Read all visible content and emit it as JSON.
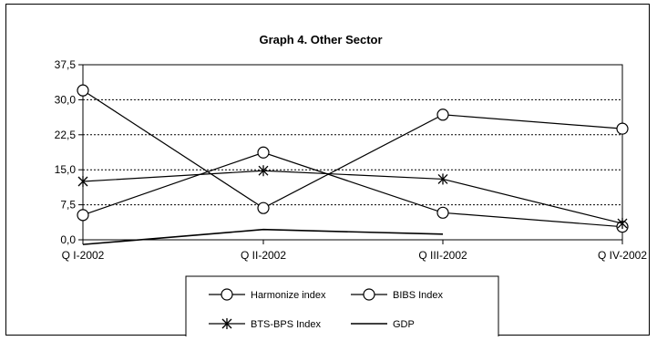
{
  "chart_data": {
    "type": "line",
    "title": "Graph 4. Other Sector",
    "xlabel": "",
    "ylabel": "",
    "categories": [
      "Q I-2002",
      "Q II-2002",
      "Q III-2002",
      "Q IV-2002"
    ],
    "y_ticks": [
      "0,0",
      "7,5",
      "15,0",
      "22,5",
      "30,0",
      "37,5"
    ],
    "y_tick_values": [
      0,
      7.5,
      15,
      22.5,
      30,
      37.5
    ],
    "ylim": [
      0,
      37.5
    ],
    "grid": "horizontal dotted",
    "legend_position": "bottom",
    "series": [
      {
        "name": "Harmonize index",
        "marker": "circle",
        "values": [
          5.3,
          18.7,
          5.8,
          2.8
        ]
      },
      {
        "name": "BIBS Index",
        "marker": "circle",
        "values": [
          32.0,
          6.8,
          26.8,
          23.8
        ]
      },
      {
        "name": "BTS-BPS Index",
        "marker": "star",
        "values": [
          12.5,
          14.8,
          13.0,
          3.5
        ]
      },
      {
        "name": "GDP",
        "marker": "none",
        "values": [
          -1.0,
          2.2,
          1.2,
          null
        ]
      }
    ],
    "colors": {
      "line": "#000000",
      "background": "#ffffff"
    }
  }
}
